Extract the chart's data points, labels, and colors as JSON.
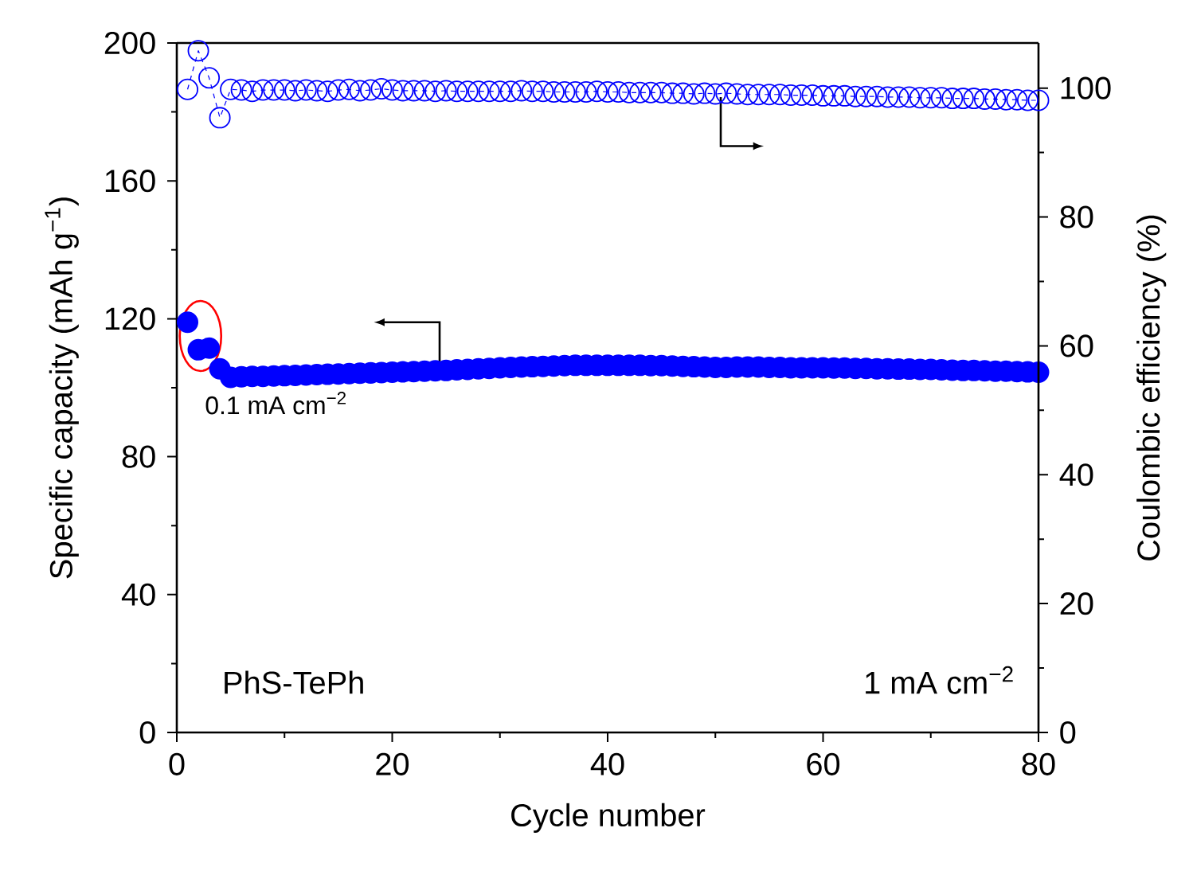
{
  "chart_data": {
    "type": "scatter",
    "xlabel": "Cycle number",
    "ylabel": "Specific capacity (mAh g$^{−1}$)",
    "y2label": "Coulombic efficiency (%)",
    "x": [
      1,
      2,
      3,
      4,
      5,
      6,
      7,
      8,
      9,
      10,
      11,
      12,
      13,
      14,
      15,
      16,
      17,
      18,
      19,
      20,
      21,
      22,
      23,
      24,
      25,
      26,
      27,
      28,
      29,
      30,
      31,
      32,
      33,
      34,
      35,
      36,
      37,
      38,
      39,
      40,
      41,
      42,
      43,
      44,
      45,
      46,
      47,
      48,
      49,
      50,
      51,
      52,
      53,
      54,
      55,
      56,
      57,
      58,
      59,
      60,
      61,
      62,
      63,
      64,
      65,
      66,
      67,
      68,
      69,
      70,
      71,
      72,
      73,
      74,
      75,
      76,
      77,
      78,
      79,
      80
    ],
    "series": [
      {
        "color": "#0000ff",
        "marker": "circle",
        "values": [
          119,
          111,
          111.5,
          105.5,
          103,
          103.2,
          103.3,
          103.3,
          103.4,
          103.5,
          103.6,
          103.7,
          103.8,
          103.9,
          104,
          104.1,
          104.2,
          104.3,
          104.4,
          104.5,
          104.6,
          104.7,
          104.8,
          104.9,
          105,
          105.2,
          105.3,
          105.5,
          105.6,
          105.8,
          105.9,
          106,
          106.1,
          106.2,
          106.3,
          106.4,
          106.5,
          106.5,
          106.5,
          106.5,
          106.5,
          106.5,
          106.5,
          106.4,
          106.4,
          106.3,
          106.2,
          106.1,
          106,
          105.9,
          105.9,
          106,
          106,
          106,
          105.9,
          105.9,
          105.8,
          105.8,
          105.8,
          105.8,
          105.7,
          105.7,
          105.6,
          105.6,
          105.5,
          105.5,
          105.4,
          105.4,
          105.3,
          105.3,
          105.2,
          105.1,
          105,
          105,
          104.9,
          104.8,
          104.8,
          104.7,
          104.6,
          104.5
        ]
      },
      {
        "type": "line",
        "color": "#0000ff",
        "marker": "circle",
        "line_style": "dashed",
        "axis": "y2",
        "values": [
          99.8,
          105.8,
          101.6,
          95.4,
          99.8,
          99.7,
          99.5,
          99.7,
          99.7,
          99.7,
          99.6,
          99.7,
          99.6,
          99.5,
          99.7,
          99.8,
          99.6,
          99.7,
          99.9,
          99.7,
          99.6,
          99.6,
          99.6,
          99.5,
          99.6,
          99.5,
          99.5,
          99.5,
          99.5,
          99.5,
          99.5,
          99.6,
          99.5,
          99.5,
          99.4,
          99.4,
          99.4,
          99.4,
          99.5,
          99.4,
          99.4,
          99.3,
          99.3,
          99.3,
          99.3,
          99.2,
          99.2,
          99.1,
          99.2,
          99.1,
          99.2,
          99.1,
          99.0,
          99.0,
          99.0,
          99.0,
          98.9,
          98.9,
          98.9,
          98.8,
          98.8,
          98.8,
          98.7,
          98.7,
          98.7,
          98.6,
          98.6,
          98.6,
          98.5,
          98.5,
          98.5,
          98.4,
          98.4,
          98.4,
          98.3,
          98.3,
          98.2,
          98.2,
          98.1,
          98.1
        ]
      }
    ],
    "xlim": [
      0,
      80
    ],
    "xticks": [
      0,
      20,
      40,
      60,
      80
    ],
    "ylim": [
      0,
      200
    ],
    "yticks": [
      0,
      40,
      80,
      120,
      160,
      200
    ],
    "y2lim": [
      0,
      107
    ],
    "y2ticks": [
      0,
      20,
      40,
      60,
      80,
      100
    ],
    "annotations": [
      "0.1 mA cm$^{−2}$",
      "PhS-TePh",
      "1 mA cm$^{−2}$"
    ],
    "grid": false
  }
}
